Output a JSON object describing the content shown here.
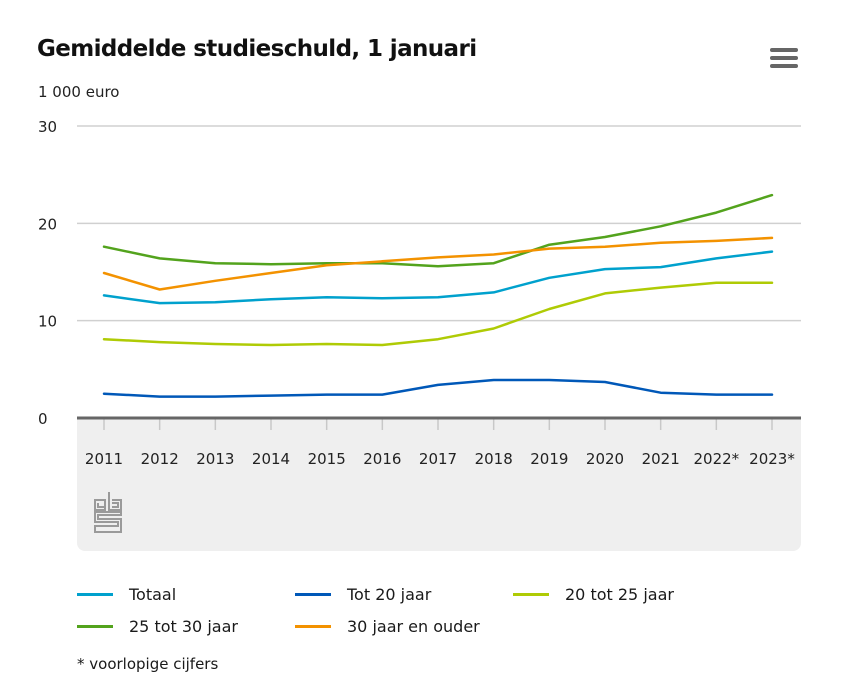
{
  "title": "Gemiddelde studieschuld, 1 januari",
  "unit_label": "1 000 euro",
  "menu_icon": "hamburger-menu-icon",
  "logo": "cbs-logo",
  "footnote": "* voorlopige cijfers",
  "chart_data": {
    "type": "line",
    "title": "Gemiddelde studieschuld, 1 januari",
    "ylabel": "1 000 euro",
    "xlabel": "",
    "ylim": [
      0,
      30
    ],
    "yticks": [
      0,
      10,
      20,
      30
    ],
    "grid": true,
    "legend_position": "bottom",
    "categories": [
      "2011",
      "2012",
      "2013",
      "2014",
      "2015",
      "2016",
      "2017",
      "2018",
      "2019",
      "2020",
      "2021",
      "2022*",
      "2023*"
    ],
    "series": [
      {
        "name": "Totaal",
        "color": "#00a1cd",
        "values": [
          12.6,
          11.8,
          11.9,
          12.2,
          12.4,
          12.3,
          12.4,
          12.9,
          14.4,
          15.3,
          15.5,
          16.4,
          17.1
        ]
      },
      {
        "name": "Tot 20 jaar",
        "color": "#0058b8",
        "values": [
          2.5,
          2.2,
          2.2,
          2.3,
          2.4,
          2.4,
          3.4,
          3.9,
          3.9,
          3.7,
          2.6,
          2.4,
          2.4
        ]
      },
      {
        "name": "20 tot 25 jaar",
        "color": "#afcb05",
        "values": [
          8.1,
          7.8,
          7.6,
          7.5,
          7.6,
          7.5,
          8.1,
          9.2,
          11.2,
          12.8,
          13.4,
          13.9,
          13.9
        ]
      },
      {
        "name": "25 tot 30 jaar",
        "color": "#53a31d",
        "values": [
          17.6,
          16.4,
          15.9,
          15.8,
          15.9,
          15.9,
          15.6,
          15.9,
          17.8,
          18.6,
          19.7,
          21.1,
          22.9
        ]
      },
      {
        "name": "30 jaar en ouder",
        "color": "#f39200",
        "values": [
          14.9,
          13.2,
          14.1,
          14.9,
          15.7,
          16.1,
          16.5,
          16.8,
          17.4,
          17.6,
          18.0,
          18.2,
          18.5
        ]
      }
    ]
  }
}
